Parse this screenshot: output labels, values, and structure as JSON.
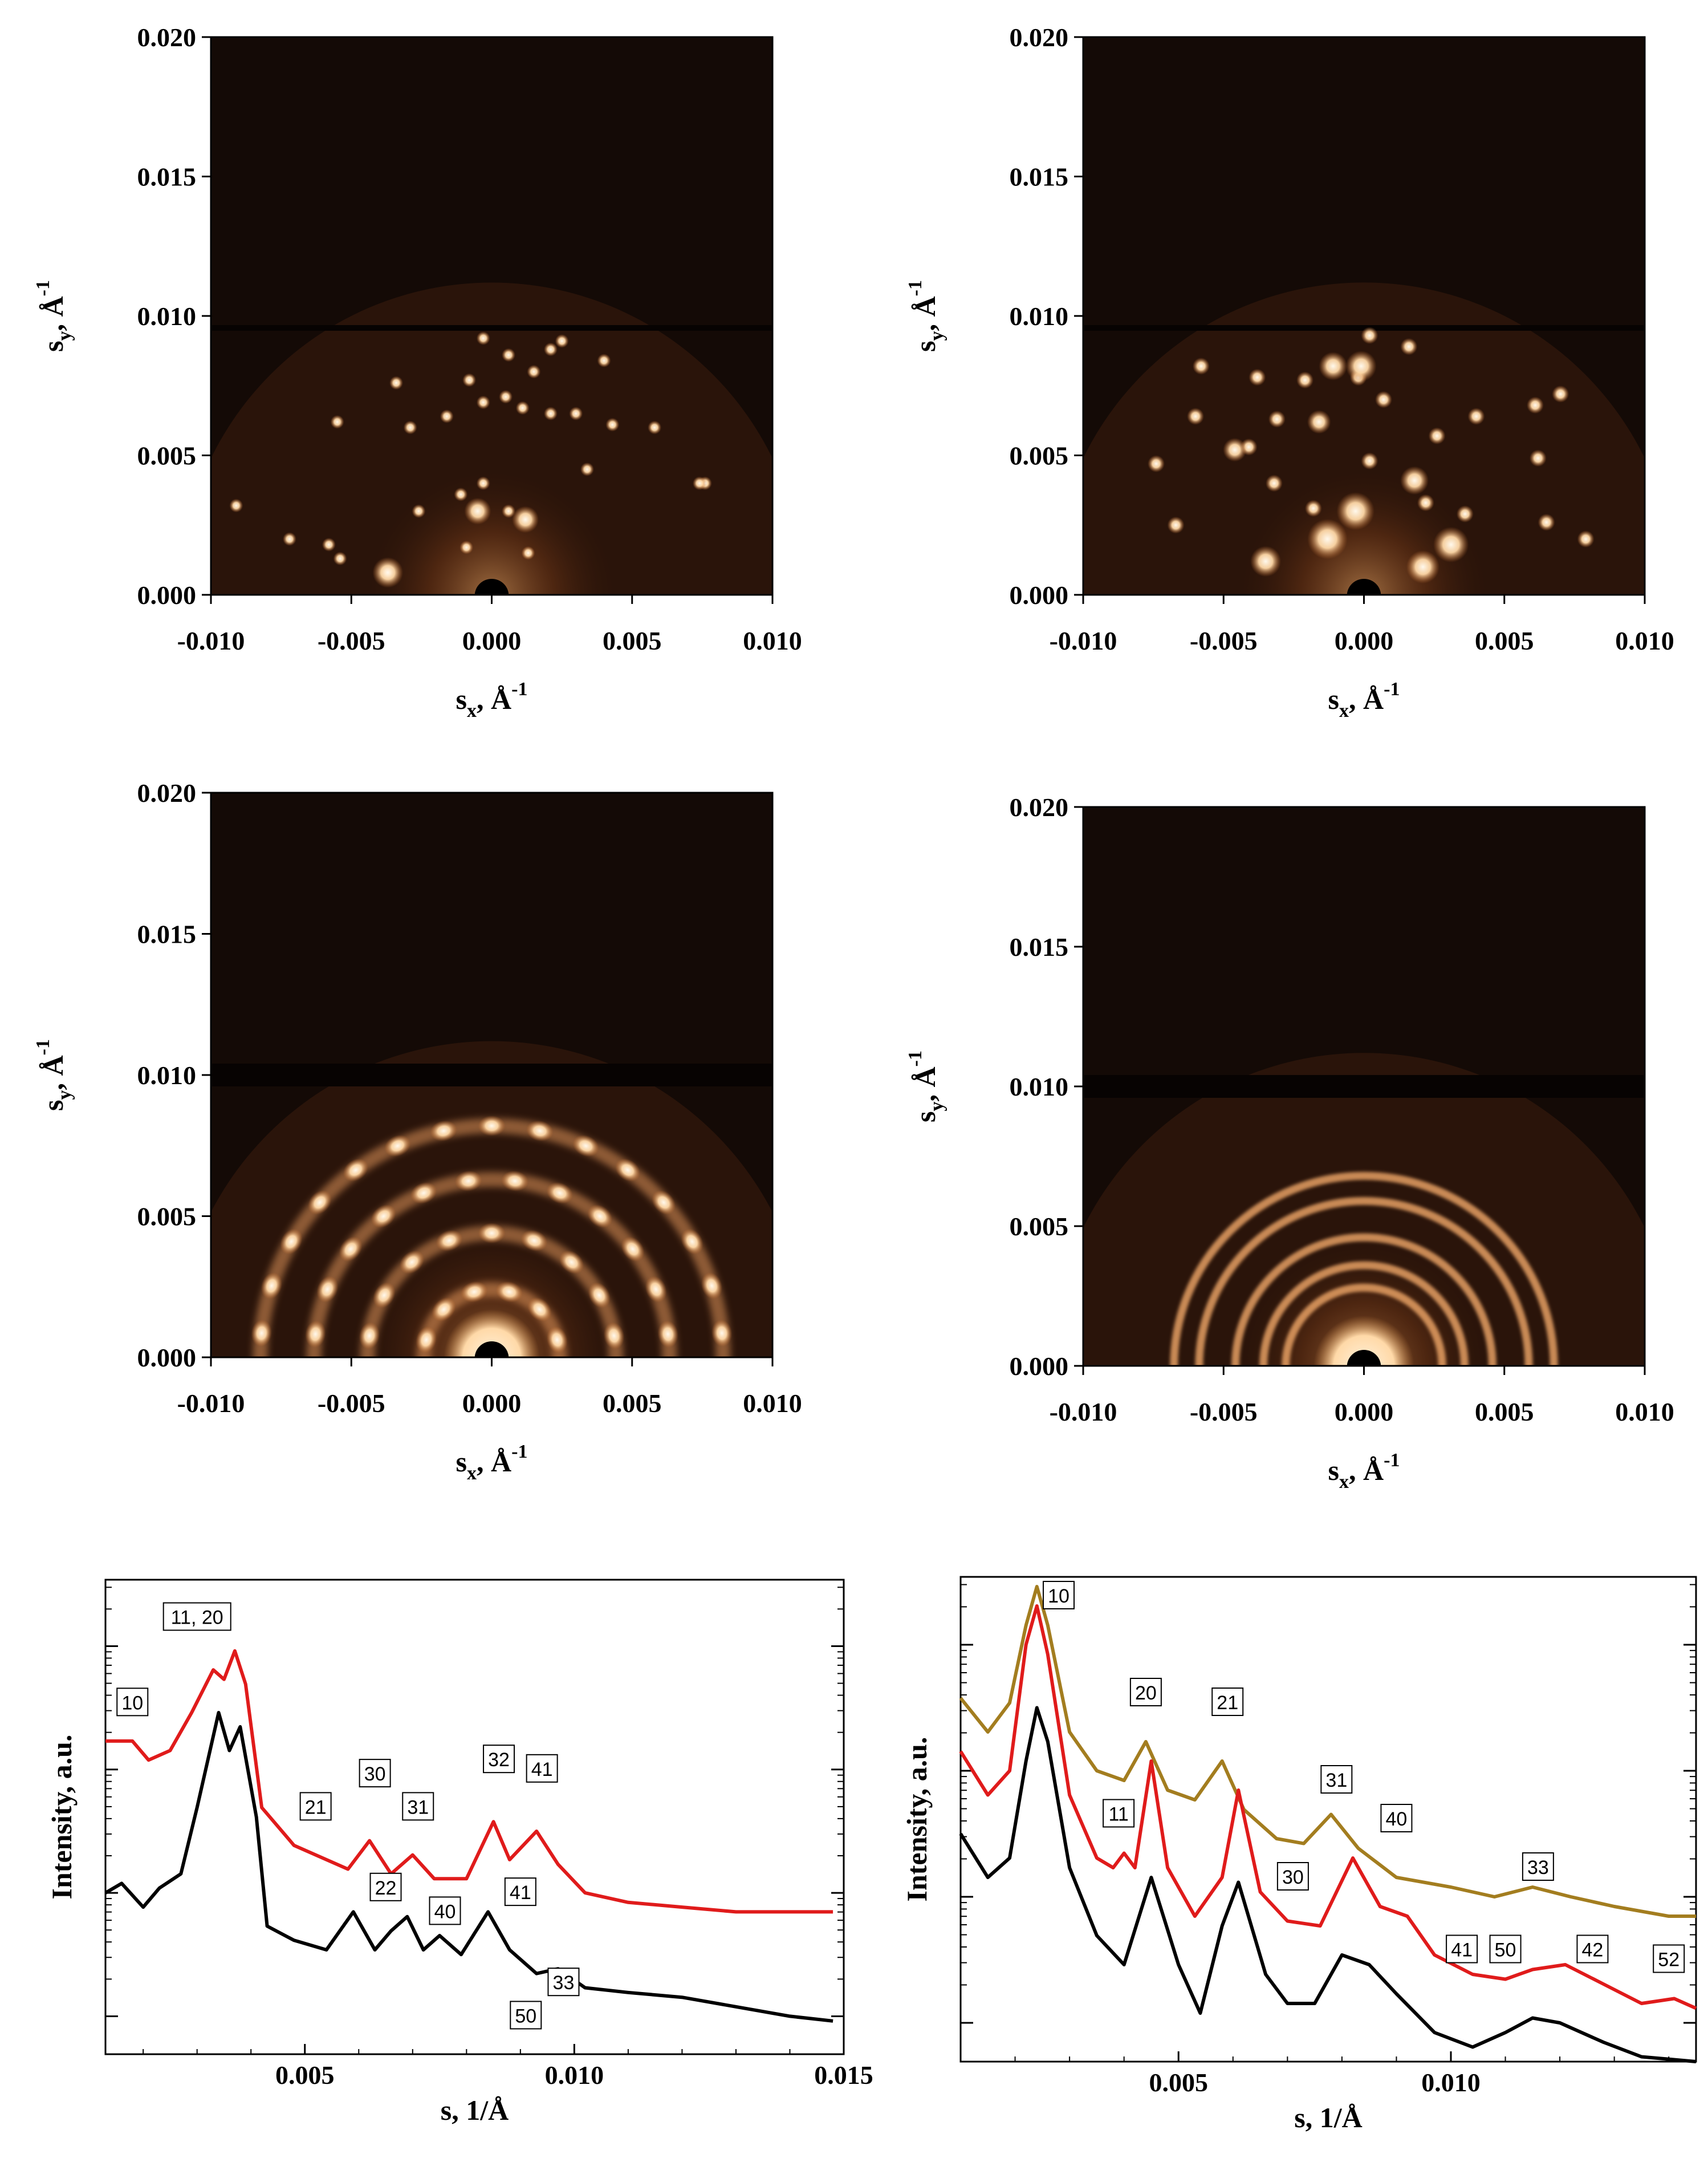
{
  "diffraction_panels": [
    {
      "id": "A",
      "xticks": [
        "-0.010",
        "-0.005",
        "0.000",
        "0.005",
        "0.010"
      ],
      "yticks": [
        "0.000",
        "0.005",
        "0.010",
        "0.015",
        "0.020"
      ],
      "xlabel": "s",
      "xlabel_sub": "x",
      "xlabel_unit": ", Å",
      "xlabel_sup": "-1",
      "ylabel": "s",
      "ylabel_sub": "y",
      "ylabel_unit": ", Å",
      "ylabel_sup": "-1"
    },
    {
      "id": "B",
      "xticks": [
        "-0.010",
        "-0.005",
        "0.000",
        "0.005",
        "0.010"
      ],
      "yticks": [
        "0.000",
        "0.005",
        "0.010",
        "0.015",
        "0.020"
      ],
      "xlabel": "s",
      "xlabel_sub": "x",
      "xlabel_unit": ", Å",
      "xlabel_sup": "-1",
      "ylabel": "s",
      "ylabel_sub": "y",
      "ylabel_unit": ", Å",
      "ylabel_sup": "-1"
    },
    {
      "id": "C",
      "xticks": [
        "-0.010",
        "-0.005",
        "0.000",
        "0.005",
        "0.010"
      ],
      "yticks": [
        "0.000",
        "0.005",
        "0.010",
        "0.015",
        "0.020"
      ],
      "xlabel": "s",
      "xlabel_sub": "x",
      "xlabel_unit": ", Å",
      "xlabel_sup": "-1",
      "ylabel": "s",
      "ylabel_sub": "y",
      "ylabel_unit": ", Å",
      "ylabel_sup": "-1"
    },
    {
      "id": "D",
      "xticks": [
        "-0.010",
        "-0.005",
        "0.000",
        "0.005",
        "0.010"
      ],
      "yticks": [
        "0.000",
        "0.005",
        "0.010",
        "0.015",
        "0.020"
      ],
      "xlabel": "s",
      "xlabel_sub": "x",
      "xlabel_unit": ", Å",
      "xlabel_sup": "-1",
      "ylabel": "s",
      "ylabel_sub": "y",
      "ylabel_unit": ", Å",
      "ylabel_sup": "-1"
    }
  ],
  "colors": {
    "pattern_bg": "#140a06",
    "spot": "#ffe6c2",
    "red": "#e01b1b",
    "black": "#000000",
    "gold": "#a37d1f"
  },
  "chart_data": [
    {
      "type": "line",
      "id": "E",
      "xlabel": "s, 1/Å",
      "ylabel": "Intensity, a.u.",
      "xlim": [
        0.0013,
        0.015
      ],
      "xticks": [
        "0.005",
        "0.010",
        "0.015"
      ],
      "series": [
        {
          "name": "red",
          "color": "#e01b1b",
          "points": [
            [
              0.0013,
              0.66
            ],
            [
              0.0018,
              0.66
            ],
            [
              0.0021,
              0.62
            ],
            [
              0.0025,
              0.64
            ],
            [
              0.0029,
              0.72
            ],
            [
              0.0033,
              0.81
            ],
            [
              0.0035,
              0.79
            ],
            [
              0.0037,
              0.85
            ],
            [
              0.0039,
              0.78
            ],
            [
              0.0042,
              0.52
            ],
            [
              0.0048,
              0.44
            ],
            [
              0.0054,
              0.41
            ],
            [
              0.0058,
              0.39
            ],
            [
              0.0062,
              0.45
            ],
            [
              0.0066,
              0.38
            ],
            [
              0.007,
              0.42
            ],
            [
              0.0074,
              0.37
            ],
            [
              0.008,
              0.37
            ],
            [
              0.0085,
              0.49
            ],
            [
              0.0088,
              0.41
            ],
            [
              0.0093,
              0.47
            ],
            [
              0.0097,
              0.4
            ],
            [
              0.0102,
              0.34
            ],
            [
              0.011,
              0.32
            ],
            [
              0.012,
              0.31
            ],
            [
              0.013,
              0.3
            ],
            [
              0.014,
              0.3
            ],
            [
              0.0148,
              0.3
            ]
          ]
        },
        {
          "name": "black",
          "color": "#000000",
          "points": [
            [
              0.0013,
              0.34
            ],
            [
              0.0016,
              0.36
            ],
            [
              0.002,
              0.31
            ],
            [
              0.0023,
              0.35
            ],
            [
              0.0027,
              0.38
            ],
            [
              0.003,
              0.52
            ],
            [
              0.0034,
              0.72
            ],
            [
              0.0036,
              0.64
            ],
            [
              0.0038,
              0.69
            ],
            [
              0.0041,
              0.5
            ],
            [
              0.0043,
              0.27
            ],
            [
              0.0048,
              0.24
            ],
            [
              0.0054,
              0.22
            ],
            [
              0.0059,
              0.3
            ],
            [
              0.0063,
              0.22
            ],
            [
              0.0066,
              0.26
            ],
            [
              0.0069,
              0.29
            ],
            [
              0.0072,
              0.22
            ],
            [
              0.0075,
              0.25
            ],
            [
              0.0079,
              0.21
            ],
            [
              0.0084,
              0.3
            ],
            [
              0.0088,
              0.22
            ],
            [
              0.0093,
              0.17
            ],
            [
              0.0097,
              0.18
            ],
            [
              0.0102,
              0.14
            ],
            [
              0.011,
              0.13
            ],
            [
              0.012,
              0.12
            ],
            [
              0.013,
              0.1
            ],
            [
              0.014,
              0.08
            ],
            [
              0.0148,
              0.07
            ]
          ]
        }
      ],
      "annotations": [
        {
          "text": "11, 20",
          "x": 0.003,
          "y": 0.92
        },
        {
          "text": "10",
          "x": 0.0018,
          "y": 0.74
        },
        {
          "text": "21",
          "x": 0.0052,
          "y": 0.52
        },
        {
          "text": "30",
          "x": 0.0063,
          "y": 0.59
        },
        {
          "text": "31",
          "x": 0.0071,
          "y": 0.52
        },
        {
          "text": "32",
          "x": 0.0086,
          "y": 0.62
        },
        {
          "text": "41",
          "x": 0.0094,
          "y": 0.6
        },
        {
          "text": "22",
          "x": 0.0065,
          "y": 0.35
        },
        {
          "text": "40",
          "x": 0.0076,
          "y": 0.3
        },
        {
          "text": "41",
          "x": 0.009,
          "y": 0.34
        },
        {
          "text": "33",
          "x": 0.0098,
          "y": 0.15
        },
        {
          "text": "50",
          "x": 0.0091,
          "y": 0.08
        }
      ]
    },
    {
      "type": "line",
      "id": "F",
      "xlabel": "s, 1/Å",
      "ylabel": "Intensity, a.u.",
      "xlim": [
        0.001,
        0.0145
      ],
      "xticks": [
        "0.005",
        "0.010"
      ],
      "series": [
        {
          "name": "gold",
          "color": "#a37d1f",
          "points": [
            [
              0.001,
              0.75
            ],
            [
              0.0015,
              0.68
            ],
            [
              0.0019,
              0.74
            ],
            [
              0.0022,
              0.9
            ],
            [
              0.0024,
              0.98
            ],
            [
              0.0026,
              0.9
            ],
            [
              0.003,
              0.68
            ],
            [
              0.0035,
              0.6
            ],
            [
              0.004,
              0.58
            ],
            [
              0.0044,
              0.66
            ],
            [
              0.0048,
              0.56
            ],
            [
              0.0053,
              0.54
            ],
            [
              0.0058,
              0.62
            ],
            [
              0.0062,
              0.52
            ],
            [
              0.0068,
              0.46
            ],
            [
              0.0073,
              0.45
            ],
            [
              0.0078,
              0.51
            ],
            [
              0.0083,
              0.44
            ],
            [
              0.009,
              0.38
            ],
            [
              0.01,
              0.36
            ],
            [
              0.0108,
              0.34
            ],
            [
              0.0115,
              0.36
            ],
            [
              0.0122,
              0.34
            ],
            [
              0.013,
              0.32
            ],
            [
              0.014,
              0.3
            ],
            [
              0.0145,
              0.3
            ]
          ]
        },
        {
          "name": "red",
          "color": "#e01b1b",
          "points": [
            [
              0.001,
              0.64
            ],
            [
              0.0015,
              0.55
            ],
            [
              0.0019,
              0.6
            ],
            [
              0.0022,
              0.86
            ],
            [
              0.0024,
              0.94
            ],
            [
              0.0026,
              0.84
            ],
            [
              0.003,
              0.55
            ],
            [
              0.0035,
              0.42
            ],
            [
              0.0038,
              0.4
            ],
            [
              0.004,
              0.43
            ],
            [
              0.0042,
              0.4
            ],
            [
              0.0045,
              0.62
            ],
            [
              0.0048,
              0.4
            ],
            [
              0.0053,
              0.3
            ],
            [
              0.0058,
              0.38
            ],
            [
              0.0061,
              0.56
            ],
            [
              0.0065,
              0.35
            ],
            [
              0.007,
              0.29
            ],
            [
              0.0076,
              0.28
            ],
            [
              0.0082,
              0.42
            ],
            [
              0.0087,
              0.32
            ],
            [
              0.0092,
              0.3
            ],
            [
              0.0097,
              0.22
            ],
            [
              0.0104,
              0.18
            ],
            [
              0.011,
              0.17
            ],
            [
              0.0115,
              0.19
            ],
            [
              0.0121,
              0.2
            ],
            [
              0.0128,
              0.16
            ],
            [
              0.0135,
              0.12
            ],
            [
              0.0141,
              0.13
            ],
            [
              0.0145,
              0.11
            ]
          ]
        },
        {
          "name": "black",
          "color": "#000000",
          "points": [
            [
              0.001,
              0.47
            ],
            [
              0.0015,
              0.38
            ],
            [
              0.0019,
              0.42
            ],
            [
              0.0022,
              0.62
            ],
            [
              0.0024,
              0.73
            ],
            [
              0.0026,
              0.66
            ],
            [
              0.003,
              0.4
            ],
            [
              0.0035,
              0.26
            ],
            [
              0.004,
              0.2
            ],
            [
              0.0045,
              0.38
            ],
            [
              0.005,
              0.2
            ],
            [
              0.0054,
              0.1
            ],
            [
              0.0058,
              0.28
            ],
            [
              0.0061,
              0.37
            ],
            [
              0.0066,
              0.18
            ],
            [
              0.007,
              0.12
            ],
            [
              0.0075,
              0.12
            ],
            [
              0.008,
              0.22
            ],
            [
              0.0085,
              0.2
            ],
            [
              0.009,
              0.14
            ],
            [
              0.0097,
              0.06
            ],
            [
              0.0104,
              0.03
            ],
            [
              0.011,
              0.06
            ],
            [
              0.0115,
              0.09
            ],
            [
              0.012,
              0.08
            ],
            [
              0.0128,
              0.04
            ],
            [
              0.0135,
              0.01
            ],
            [
              0.0145,
              0.0
            ]
          ]
        }
      ],
      "annotations": [
        {
          "text": "10",
          "x": 0.0028,
          "y": 0.96
        },
        {
          "text": "20",
          "x": 0.0044,
          "y": 0.76
        },
        {
          "text": "21",
          "x": 0.0059,
          "y": 0.74
        },
        {
          "text": "11",
          "x": 0.0039,
          "y": 0.51
        },
        {
          "text": "31",
          "x": 0.0079,
          "y": 0.58
        },
        {
          "text": "40",
          "x": 0.009,
          "y": 0.5
        },
        {
          "text": "30",
          "x": 0.0071,
          "y": 0.38
        },
        {
          "text": "33",
          "x": 0.0116,
          "y": 0.4
        },
        {
          "text": "41",
          "x": 0.0102,
          "y": 0.23
        },
        {
          "text": "50",
          "x": 0.011,
          "y": 0.23
        },
        {
          "text": "42",
          "x": 0.0126,
          "y": 0.23
        },
        {
          "text": "52",
          "x": 0.014,
          "y": 0.21
        }
      ]
    }
  ]
}
